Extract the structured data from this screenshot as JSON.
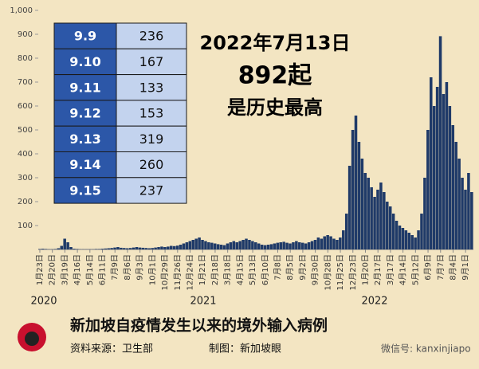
{
  "chart_data": {
    "type": "bar",
    "categories": [
      "1月23日",
      null,
      null,
      null,
      "2月20日",
      null,
      null,
      null,
      "3月19日",
      null,
      null,
      null,
      "4月16日",
      null,
      null,
      null,
      "5月14日",
      null,
      null,
      null,
      "6月11日",
      null,
      null,
      null,
      "7月9日",
      null,
      null,
      null,
      "8月6日",
      null,
      null,
      null,
      "9月3日",
      null,
      null,
      null,
      "10月1日",
      null,
      null,
      null,
      "10月29日",
      null,
      null,
      null,
      "11月26日",
      null,
      null,
      null,
      "12月24日",
      null,
      null,
      null,
      "1月21日",
      null,
      null,
      null,
      "2月18日",
      null,
      null,
      null,
      "3月18日",
      null,
      null,
      null,
      "4月15日",
      null,
      null,
      null,
      "5月13日",
      null,
      null,
      null,
      "6月10日",
      null,
      null,
      null,
      "7月8日",
      null,
      null,
      null,
      "8月5日",
      null,
      null,
      null,
      "9月2日",
      null,
      null,
      null,
      "9月30日",
      null,
      null,
      null,
      "10月28日",
      null,
      null,
      null,
      "11月25日",
      null,
      null,
      null,
      "12月23日",
      null,
      null,
      null,
      "1月20日",
      null,
      null,
      null,
      "2月17日",
      null,
      null,
      null,
      "3月17日",
      null,
      null,
      null,
      "4月14日",
      null,
      null,
      null,
      "5月12日",
      null,
      null,
      null,
      "6月9日",
      null,
      null,
      null,
      "7月7日",
      null,
      null,
      null,
      "8月4日",
      null,
      null,
      null,
      "9月1日",
      null,
      null
    ],
    "values": [
      2,
      3,
      2,
      1,
      1,
      2,
      5,
      15,
      45,
      30,
      10,
      3,
      2,
      1,
      1,
      1,
      1,
      1,
      2,
      2,
      3,
      4,
      5,
      6,
      8,
      10,
      7,
      6,
      5,
      6,
      8,
      10,
      8,
      7,
      6,
      5,
      6,
      8,
      10,
      12,
      10,
      12,
      15,
      14,
      16,
      20,
      25,
      30,
      35,
      40,
      45,
      50,
      40,
      35,
      30,
      28,
      25,
      22,
      20,
      18,
      25,
      30,
      35,
      30,
      35,
      40,
      45,
      40,
      35,
      30,
      25,
      20,
      18,
      20,
      22,
      25,
      28,
      30,
      32,
      28,
      25,
      30,
      35,
      30,
      28,
      25,
      30,
      35,
      40,
      50,
      45,
      55,
      60,
      55,
      45,
      40,
      50,
      80,
      150,
      350,
      500,
      560,
      450,
      380,
      320,
      300,
      260,
      220,
      250,
      280,
      240,
      200,
      180,
      150,
      120,
      100,
      90,
      80,
      70,
      60,
      50,
      80,
      150,
      300,
      500,
      720,
      600,
      680,
      892,
      650,
      700,
      600,
      520,
      450,
      380,
      300,
      250,
      320,
      240
    ],
    "color": "#1f3a68",
    "ylim": [
      0,
      1000
    ],
    "yticks": [
      100,
      200,
      300,
      400,
      500,
      600,
      700,
      800,
      900,
      {
        "value": 1000,
        "label": "1,000"
      }
    ],
    "year_labels": [
      "2020",
      "2021",
      "2022"
    ],
    "annotation": [
      "2022年7月13日",
      "892起",
      "是历史最高"
    ]
  },
  "table": {
    "rows": [
      [
        "9.9",
        236
      ],
      [
        "9.10",
        167
      ],
      [
        "9.11",
        133
      ],
      [
        "9.12",
        153
      ],
      [
        "9.13",
        319
      ],
      [
        "9.14",
        260
      ],
      [
        "9.15",
        237
      ]
    ]
  },
  "footer": {
    "title": "新加坡自疫情发生以来的境外输入病例",
    "source": "资料来源：卫生部",
    "maker": "制图：新加坡眼",
    "watermark": "微信号: kanxinjiapo"
  }
}
